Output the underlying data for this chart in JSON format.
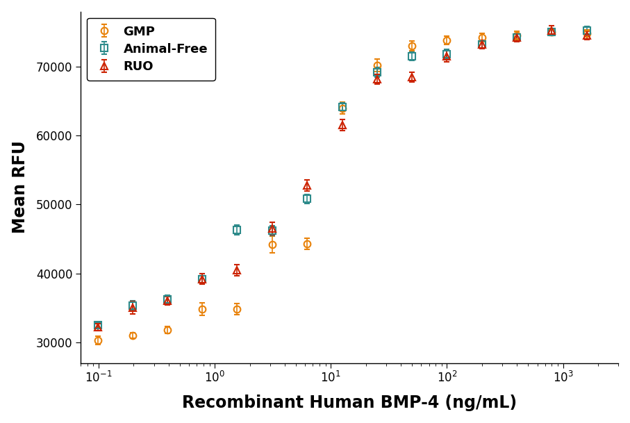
{
  "title": "",
  "xlabel": "Recombinant Human BMP-4 (ng/mL)",
  "ylabel": "Mean RFU",
  "xlabel_fontsize": 17,
  "ylabel_fontsize": 17,
  "xlabel_fontweight": "bold",
  "ylabel_fontweight": "bold",
  "background_color": "#ffffff",
  "series": [
    {
      "label": "GMP",
      "color": "#E8820A",
      "marker": "o",
      "markersize": 7,
      "x": [
        0.098,
        0.195,
        0.39,
        0.78,
        1.56,
        3.13,
        6.25,
        12.5,
        25,
        50,
        100,
        200,
        400,
        800,
        1600
      ],
      "y": [
        30300,
        31000,
        31800,
        34800,
        34800,
        44200,
        44300,
        64000,
        70200,
        73000,
        73800,
        74200,
        74500,
        75000,
        74800
      ],
      "yerr": [
        600,
        400,
        500,
        900,
        800,
        1200,
        800,
        900,
        900,
        700,
        600,
        600,
        600,
        500,
        500
      ]
    },
    {
      "label": "Animal-Free",
      "color": "#2E8B8B",
      "marker": "s",
      "markersize": 7,
      "x": [
        0.098,
        0.195,
        0.39,
        0.78,
        1.56,
        3.13,
        6.25,
        12.5,
        25,
        50,
        100,
        200,
        400,
        800,
        1600
      ],
      "y": [
        32500,
        35300,
        36200,
        39200,
        46300,
        46200,
        50800,
        64200,
        69200,
        71500,
        71800,
        73200,
        74200,
        75000,
        75200
      ],
      "yerr": [
        400,
        700,
        600,
        800,
        700,
        700,
        700,
        600,
        700,
        600,
        700,
        600,
        500,
        500,
        600
      ]
    },
    {
      "label": "RUO",
      "color": "#CC2200",
      "marker": "^",
      "markersize": 7,
      "x": [
        0.098,
        0.195,
        0.39,
        0.78,
        1.56,
        3.13,
        6.25,
        12.5,
        25,
        50,
        100,
        200,
        400,
        800,
        1600
      ],
      "y": [
        32200,
        35000,
        36000,
        39200,
        40500,
        46500,
        52800,
        61500,
        68200,
        68500,
        71500,
        73200,
        74200,
        75200,
        74500
      ],
      "yerr": [
        500,
        900,
        600,
        800,
        800,
        900,
        800,
        800,
        700,
        700,
        800,
        600,
        600,
        700,
        600
      ]
    }
  ],
  "xlim": [
    0.07,
    3000
  ],
  "ylim": [
    27000,
    78000
  ],
  "yticks": [
    30000,
    40000,
    50000,
    60000,
    70000
  ],
  "legend_loc": "upper left",
  "legend_fontsize": 13,
  "tick_labelsize": 12
}
